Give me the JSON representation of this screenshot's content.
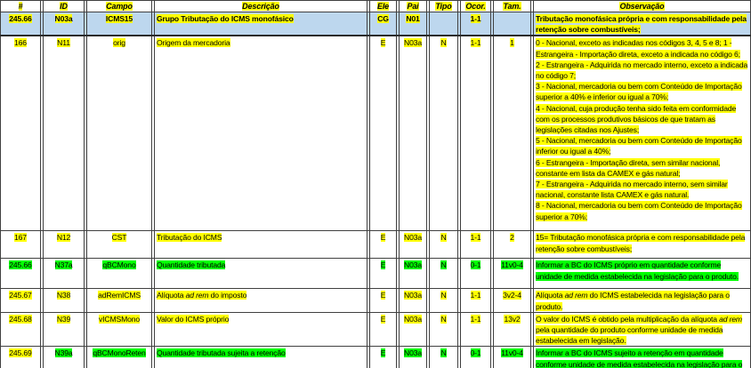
{
  "colors": {
    "highlight_yellow": "#ffff00",
    "highlight_green": "#00ff00",
    "group_row_blue": "#bdd7ee",
    "grid_line": "#404040"
  },
  "header": {
    "labels": [
      "#",
      "ID",
      "Campo",
      "Descrição",
      "Ele",
      "Pai",
      "Tipo",
      "Ocor.",
      "Tam.",
      "Observação"
    ]
  },
  "rows": [
    {
      "num": "245.66",
      "id": "N03a",
      "campo": "ICMS15",
      "desc": "Grupo Tributação do ICMS monofásico",
      "ele": "CG",
      "pai": "N01",
      "tipo": "",
      "ocor": "1-1",
      "tam": "",
      "obs": "Tributação monofásica própria e com responsabilidade pela retenção sobre combustíveis;"
    },
    {
      "num": "166",
      "id": "N11",
      "campo": "orig",
      "desc": "Origem da mercadoria",
      "ele": "E",
      "pai": "N03a",
      "tipo": "N",
      "ocor": "1-1",
      "tam": "1",
      "obs": "0 - Nacional, exceto as indicadas nos códigos 3, 4, 5 e 8; 1 - Estrangeira - Importação direta, exceto a indicada no código 6;\n2 - Estrangeira - Adquirida no mercado interno, exceto a indicada no código 7;\n3 - Nacional, mercadoria ou bem com Conteúdo de Importação superior a 40% e inferior ou igual a 70%;\n4 - Nacional, cuja produção tenha sido feita em conformidade com os processos produtivos básicos de que tratam as legislações citadas nos Ajustes;\n5 - Nacional, mercadoria ou bem com Conteúdo de Importação inferior ou igual a 40%;\n6 - Estrangeira - Importação direta, sem similar nacional, constante em lista da CAMEX e gás natural;\n7 - Estrangeira - Adquirida no mercado interno, sem similar nacional, constante lista CAMEX e gás natural.\n8 - Nacional, mercadoria ou bem com Conteúdo de Importação superior a 70%;"
    },
    {
      "num": "167",
      "id": "N12",
      "campo": "CST",
      "desc": "Tributação do ICMS",
      "ele": "E",
      "pai": "N03a",
      "tipo": "N",
      "ocor": "1-1",
      "tam": "2",
      "obs": "15= Tributação monofásica própria e com responsabilidade pela retenção sobre combustíveis;"
    },
    {
      "num": "245.66",
      "id": "N37a",
      "campo": "qBCMono",
      "desc": "Quantidade tributada",
      "ele": "E",
      "pai": "N03a",
      "tipo": "N",
      "ocor": "0-1",
      "tam": "11v0-4",
      "obs": "Informar a BC do ICMS próprio em quantidade conforme unidade de medida estabelecida na legislação para o produto."
    },
    {
      "num": "245.67",
      "id": "N38",
      "campo": "adRemICMS",
      "desc_pre": "Alíquota ",
      "desc_it": "ad rem",
      "desc_post": " do imposto",
      "ele": "E",
      "pai": "N03a",
      "tipo": "N",
      "ocor": "1-1",
      "tam": "3v2-4",
      "obs_pre": "Alíquota ",
      "obs_it": "ad rem",
      "obs_post": " do ICMS estabelecida na legislação para o produto."
    },
    {
      "num": "245.68",
      "id": "N39",
      "campo": "vICMSMono",
      "desc": "Valor do ICMS próprio",
      "ele": "E",
      "pai": "N03a",
      "tipo": "N",
      "ocor": "1-1",
      "tam": "13v2",
      "obs_pre": "O valor do ICMS é obtido pela multiplicação da alíquota ",
      "obs_it": "ad rem",
      "obs_post": " pela quantidade do produto conforme unidade de medida estabelecida em legislação."
    },
    {
      "num": "245.69",
      "id": "N39a",
      "campo": "qBCMonoReten",
      "desc": "Quantidade tributada sujeita a retenção",
      "ele": "E",
      "pai": "N03a",
      "tipo": "N",
      "ocor": "0-1",
      "tam": "11v0-4",
      "obs": "Informar a BC do ICMS sujeito a retenção em quantidade conforme unidade de medida estabelecida na legislação para o produto."
    }
  ]
}
